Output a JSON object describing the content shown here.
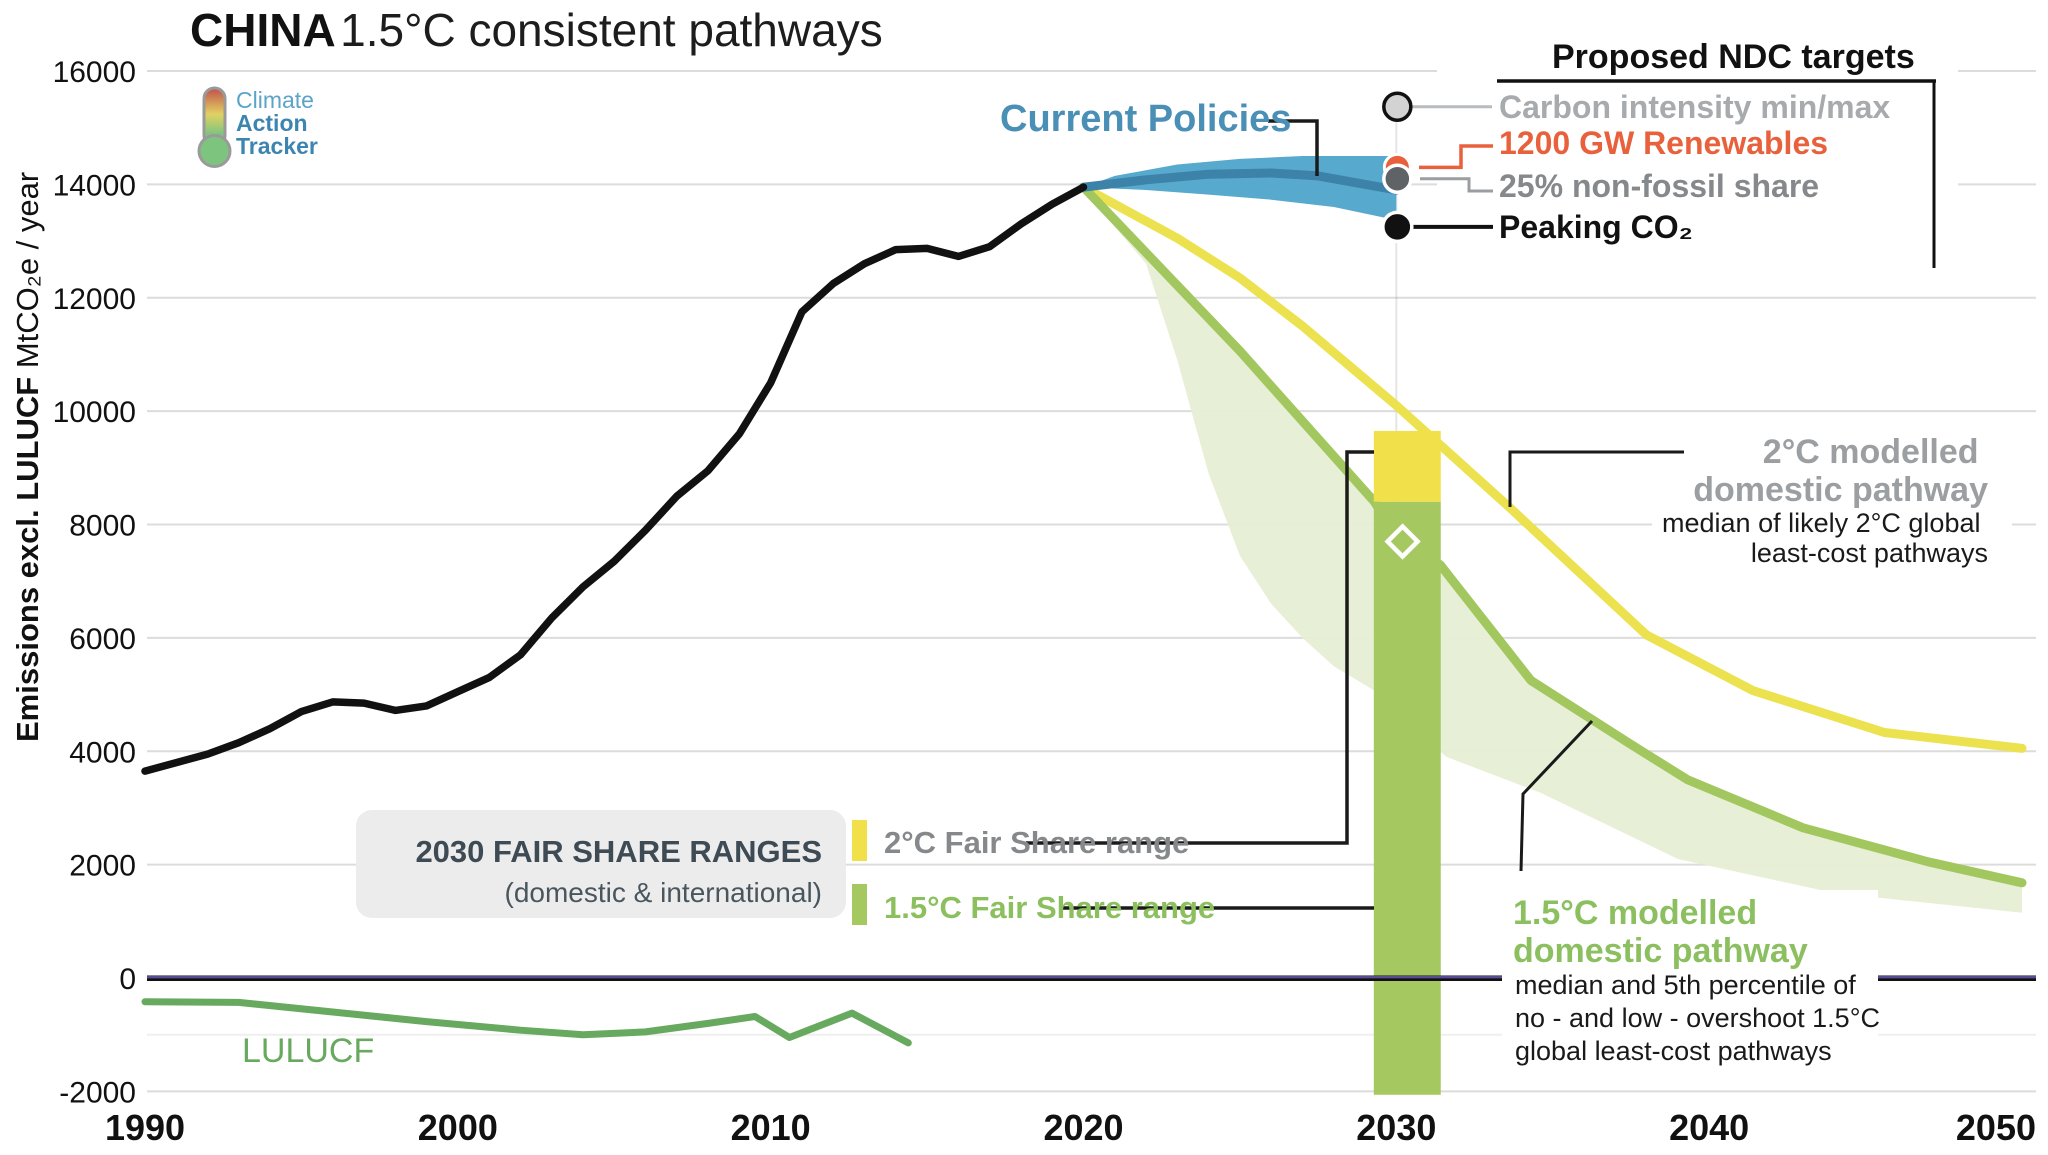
{
  "title": {
    "bold": "CHINA",
    "rest": " 1.5°C consistent pathways"
  },
  "logo": {
    "line1": "Climate",
    "line2": "Action",
    "line3": "Tracker",
    "color_light": "#5ba3c9",
    "color_dark": "#3d85b0"
  },
  "y_axis": {
    "label_bold": "Emissions excl. LULUCF",
    "label_unit": " MtCO₂e / year",
    "ticks": [
      16000,
      14000,
      12000,
      10000,
      8000,
      6000,
      4000,
      2000,
      0,
      -2000
    ]
  },
  "x_axis": {
    "ticks": [
      1990,
      2000,
      2010,
      2020,
      2030,
      2040,
      2050
    ]
  },
  "ndc_legend": {
    "title": "Proposed NDC targets",
    "items": [
      {
        "id": "carbon-intensity",
        "label": "Carbon intensity min/max",
        "color": "#a7abad"
      },
      {
        "id": "renewables-1200gw",
        "label": "1200 GW Renewables",
        "color": "#e8613c"
      },
      {
        "id": "non-fossil-share",
        "label": "25% non-fossil share",
        "color": "#85898c"
      },
      {
        "id": "peaking-co2",
        "label": "Peaking CO₂",
        "color": "#111111"
      }
    ]
  },
  "annotations": {
    "current_policies": {
      "label": "Current Policies",
      "color": "#4a8fb6"
    },
    "two_deg_pathway": {
      "title_lines": [
        "2°C modelled",
        "domestic pathway"
      ],
      "caption_lines": [
        "median of likely 2°C global",
        "least-cost pathways"
      ],
      "color": "#9b9fa2"
    },
    "one5_pathway": {
      "title_lines": [
        "1.5°C modelled",
        "domestic pathway"
      ],
      "caption_lines": [
        "median and 5th percentile of",
        "no - and low - overshoot 1.5°C",
        "global least-cost pathways"
      ],
      "color": "#8bbf5f"
    },
    "lulucf_label": {
      "text": "LULUCF",
      "color": "#67a95e"
    }
  },
  "fair_share_box": {
    "title": "2030 FAIR SHARE RANGES",
    "subtitle": "(domestic & international)",
    "bg": "#ececec",
    "title_color": "#3e4b54",
    "subtitle_color": "#4a565e",
    "entries": [
      {
        "label": "2°C Fair Share range",
        "text_color": "#85898c",
        "swatch": "#f1e04a"
      },
      {
        "label": "1.5°C Fair Share range",
        "text_color": "#8cbf5e",
        "swatch": "#a6c861"
      }
    ]
  },
  "chart_data": {
    "type": "line",
    "title": "CHINA 1.5°C consistent pathways",
    "ylabel": "Emissions excl. LULUCF MtCO₂e / year",
    "xlim": [
      1990,
      2050
    ],
    "ylim": [
      -2000,
      16000
    ],
    "grid_step": 2000,
    "colors": {
      "historical": "#111111",
      "current_policies_band": "#57a9cd",
      "current_policies_median": "#3d82a8",
      "two_deg_line": "#ece24f",
      "one5_line": "#a3c75f",
      "one5_band": "#e7eed5",
      "lulucf": "#67a95e",
      "zero_line_purple": "#5a4b96",
      "bar_two_deg": "#f1e04a",
      "bar_one5": "#a6c861"
    },
    "series": [
      {
        "name": "Historical emissions excl. LULUCF",
        "points": [
          [
            1990,
            3650
          ],
          [
            1991,
            3800
          ],
          [
            1992,
            3950
          ],
          [
            1993,
            4150
          ],
          [
            1994,
            4400
          ],
          [
            1995,
            4700
          ],
          [
            1996,
            4870
          ],
          [
            1997,
            4850
          ],
          [
            1998,
            4720
          ],
          [
            1999,
            4800
          ],
          [
            2000,
            5050
          ],
          [
            2001,
            5300
          ],
          [
            2002,
            5700
          ],
          [
            2003,
            6350
          ],
          [
            2004,
            6900
          ],
          [
            2005,
            7350
          ],
          [
            2006,
            7900
          ],
          [
            2007,
            8500
          ],
          [
            2008,
            8950
          ],
          [
            2009,
            9600
          ],
          [
            2010,
            10500
          ],
          [
            2011,
            11750
          ],
          [
            2012,
            12250
          ],
          [
            2013,
            12600
          ],
          [
            2014,
            12850
          ],
          [
            2015,
            12870
          ],
          [
            2016,
            12730
          ],
          [
            2017,
            12900
          ],
          [
            2018,
            13300
          ],
          [
            2019,
            13650
          ],
          [
            2020,
            13950
          ]
        ]
      },
      {
        "name": "LULUCF",
        "points": [
          [
            1990,
            -420
          ],
          [
            1993,
            -430
          ],
          [
            1996,
            -600
          ],
          [
            1999,
            -770
          ],
          [
            2002,
            -920
          ],
          [
            2004,
            -1000
          ],
          [
            2006,
            -950
          ],
          [
            2008,
            -800
          ],
          [
            2009.5,
            -680
          ],
          [
            2010.6,
            -1050
          ],
          [
            2012.6,
            -620
          ],
          [
            2014.4,
            -1145
          ]
        ]
      },
      {
        "name": "2°C modelled domestic pathway (median of likely 2°C global least-cost pathways)",
        "points": [
          [
            2020,
            13950
          ],
          [
            2023,
            13050
          ],
          [
            2025,
            12350
          ],
          [
            2027,
            11500
          ],
          [
            2030,
            10100
          ],
          [
            2033.6,
            8310
          ],
          [
            2038,
            6050
          ],
          [
            2041.4,
            5070
          ],
          [
            2045.6,
            4330
          ],
          [
            2050,
            4050
          ]
        ]
      },
      {
        "name": "1.5°C modelled domestic pathway (median)",
        "points": [
          [
            2020,
            13950
          ],
          [
            2025,
            11060
          ],
          [
            2029.3,
            8400
          ],
          [
            2030,
            7800
          ],
          [
            2031.4,
            7290
          ],
          [
            2034.3,
            5250
          ],
          [
            2037.5,
            4120
          ],
          [
            2039.3,
            3500
          ],
          [
            2043,
            2650
          ],
          [
            2047,
            2050
          ],
          [
            2050,
            1680
          ]
        ]
      }
    ],
    "current_policies": {
      "name": "Current Policies",
      "upper": [
        [
          2020,
          13950
        ],
        [
          2021,
          14150
        ],
        [
          2023,
          14350
        ],
        [
          2025,
          14450
        ],
        [
          2027,
          14500
        ],
        [
          2030,
          14500
        ]
      ],
      "median": [
        [
          2020,
          13950
        ],
        [
          2022,
          14080
        ],
        [
          2024,
          14180
        ],
        [
          2026,
          14200
        ],
        [
          2027.5,
          14150
        ],
        [
          2030,
          13900
        ]
      ],
      "lower": [
        [
          2020,
          13950
        ],
        [
          2022,
          13900
        ],
        [
          2024,
          13820
        ],
        [
          2026,
          13730
        ],
        [
          2028,
          13600
        ],
        [
          2030,
          13370
        ]
      ]
    },
    "one5_band_lower": [
      [
        2020,
        13900
      ],
      [
        2022,
        12600
      ],
      [
        2023,
        10900
      ],
      [
        2024,
        8900
      ],
      [
        2025,
        7450
      ],
      [
        2026,
        6600
      ],
      [
        2027,
        6000
      ],
      [
        2028,
        5500
      ],
      [
        2029.3,
        5070
      ],
      [
        2031.6,
        3900
      ],
      [
        2034.6,
        3270
      ],
      [
        2039,
        2100
      ],
      [
        2044,
        1500
      ],
      [
        2050,
        1150
      ]
    ],
    "fair_share": {
      "year_range": [
        2029.28,
        2031.42
      ],
      "two_deg_range": [
        8400,
        9650
      ],
      "one5_range": [
        -2060,
        8400
      ],
      "diamond": [
        2030.2,
        7700
      ]
    },
    "ndc_targets": {
      "year": 2030,
      "markers": [
        {
          "label": "Carbon intensity min/max",
          "value": 15370,
          "fill": "#d3d3d3",
          "stroke": "#111111"
        },
        {
          "label": "1200 GW Renewables",
          "value": 14300,
          "fill": "#e8613c",
          "stroke": "#ffffff"
        },
        {
          "label": "25% non-fossil share",
          "value": 14100,
          "fill": "#5f6365",
          "stroke": "#ffffff"
        },
        {
          "label": "Peaking CO₂",
          "value": 13250,
          "fill": "#111111",
          "stroke": "#ffffff"
        }
      ]
    }
  }
}
